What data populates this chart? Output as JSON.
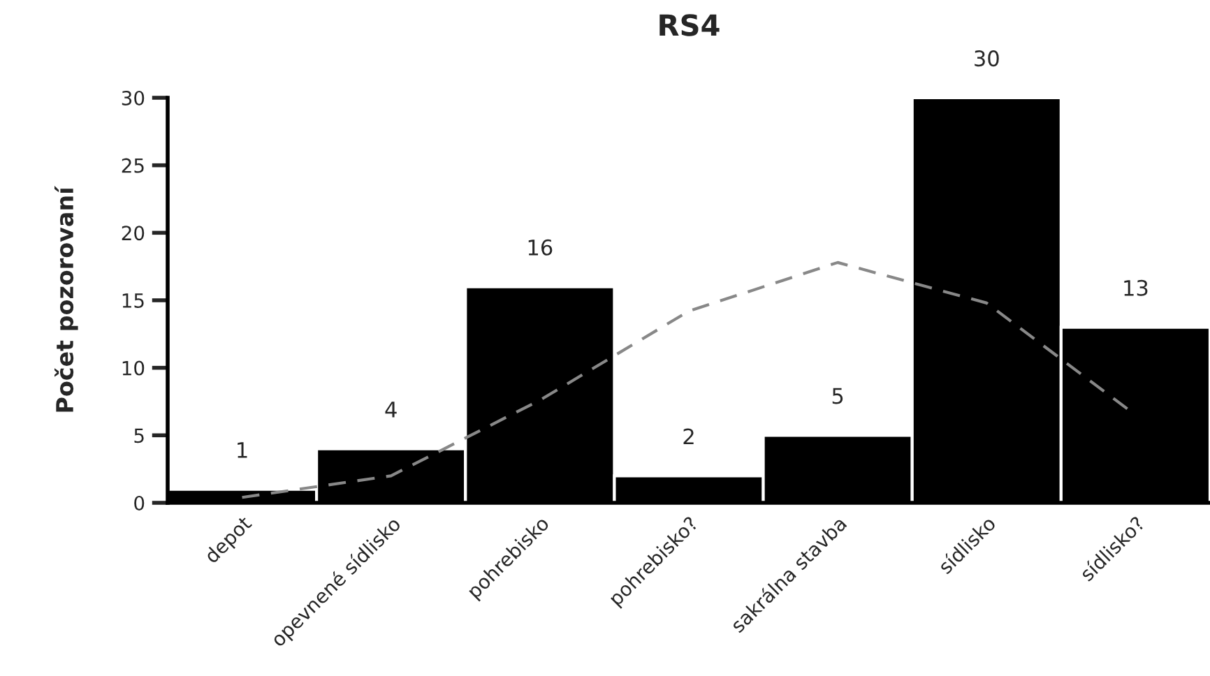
{
  "chart_data": {
    "type": "bar",
    "title": "RS4",
    "ylabel": "Počet pozorovaní",
    "categories": [
      "depot",
      "opevnené sídlisko",
      "pohrebisko",
      "pohrebisko?",
      "sakrálna stavba",
      "sídlisko",
      "sídlisko?"
    ],
    "series": [
      {
        "color": "#000000",
        "values": [
          1,
          4,
          16,
          2,
          5,
          30,
          13
        ],
        "value_labels": [
          "1",
          "4",
          "16",
          "2",
          "5",
          "30",
          "13"
        ]
      },
      {
        "type": "line",
        "color": "#888888",
        "line_style": "dashed",
        "values": [
          0.4,
          2,
          7.6,
          14.2,
          17.8,
          14.8,
          6.5
        ]
      }
    ],
    "ylim": [
      0,
      30
    ],
    "yticks": [
      0,
      5,
      10,
      15,
      20,
      25,
      30
    ],
    "grid": false,
    "legend": false
  }
}
